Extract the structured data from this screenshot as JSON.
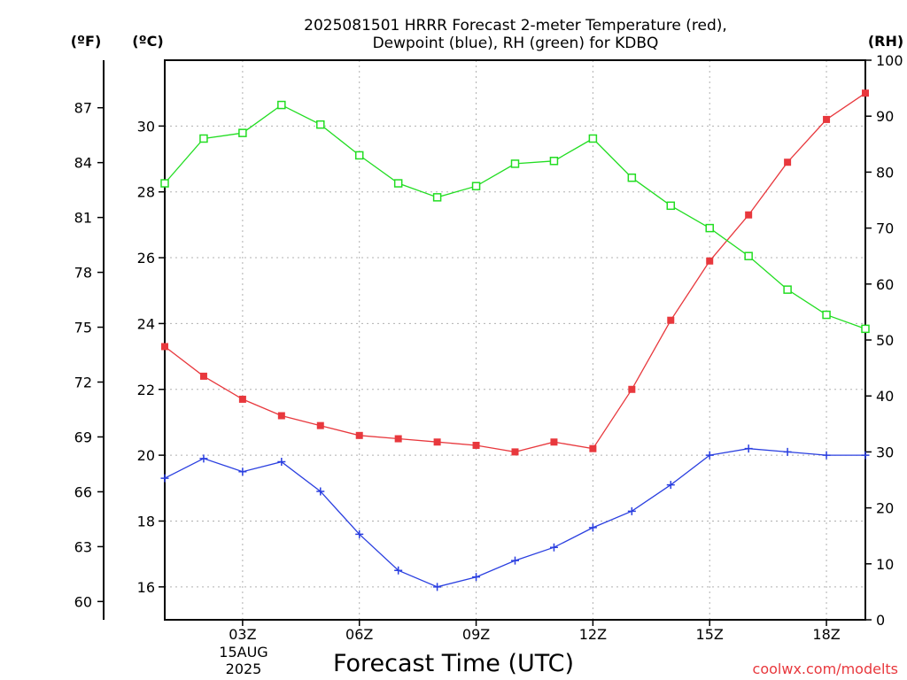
{
  "chart_data": {
    "type": "line",
    "title": [
      "2025081501 HRRR Forecast 2-meter Temperature (red),",
      "Dewpoint (blue), RH (green) for KDBQ"
    ],
    "xlabel": "Forecast Time (UTC)",
    "x": [
      "01Z",
      "02Z",
      "03Z",
      "04Z",
      "05Z",
      "06Z",
      "07Z",
      "08Z",
      "09Z",
      "10Z",
      "11Z",
      "12Z",
      "13Z",
      "14Z",
      "15Z",
      "16Z",
      "17Z",
      "18Z",
      "19Z"
    ],
    "x_tick_labels": [
      "03Z",
      "06Z",
      "09Z",
      "12Z",
      "15Z",
      "18Z"
    ],
    "x_date_label": [
      "15AUG",
      "2025"
    ],
    "left_axis_f": {
      "unit": "(ºF)",
      "ticks": [
        60,
        63,
        66,
        69,
        72,
        75,
        78,
        81,
        84,
        87
      ]
    },
    "left_axis_c": {
      "unit": "(ºC)",
      "range": [
        15.0,
        32.0
      ],
      "ticks": [
        16,
        18,
        20,
        22,
        24,
        26,
        28,
        30
      ]
    },
    "right_axis_rh": {
      "unit": "(RH)",
      "range": [
        0,
        100
      ],
      "ticks": [
        0,
        10,
        20,
        30,
        40,
        50,
        60,
        70,
        80,
        90,
        100
      ]
    },
    "grid": true,
    "series": [
      {
        "name": "Temperature",
        "color": "#e8383d",
        "marker": "filled-square",
        "axis": "celsius",
        "values": [
          23.3,
          22.4,
          21.7,
          21.2,
          20.9,
          20.6,
          20.5,
          20.4,
          20.3,
          20.1,
          20.4,
          20.2,
          22.0,
          24.1,
          25.9,
          27.3,
          28.9,
          30.2,
          31.0
        ]
      },
      {
        "name": "Dewpoint",
        "color": "#2a3fe0",
        "marker": "plus",
        "axis": "celsius",
        "values": [
          19.3,
          19.9,
          19.5,
          19.8,
          18.9,
          17.6,
          16.5,
          16.0,
          16.3,
          16.8,
          17.2,
          17.8,
          18.3,
          19.1,
          20.0,
          20.2,
          20.1,
          20.0,
          20.0
        ]
      },
      {
        "name": "RH",
        "color": "#22dd22",
        "marker": "open-square",
        "axis": "rh",
        "values": [
          78,
          86,
          87,
          92,
          88.5,
          83,
          78,
          75.5,
          77.5,
          81.5,
          82,
          86,
          79,
          74,
          70,
          65,
          59,
          54.5,
          52
        ]
      }
    ],
    "credit": "coolwx.com/modelts"
  }
}
